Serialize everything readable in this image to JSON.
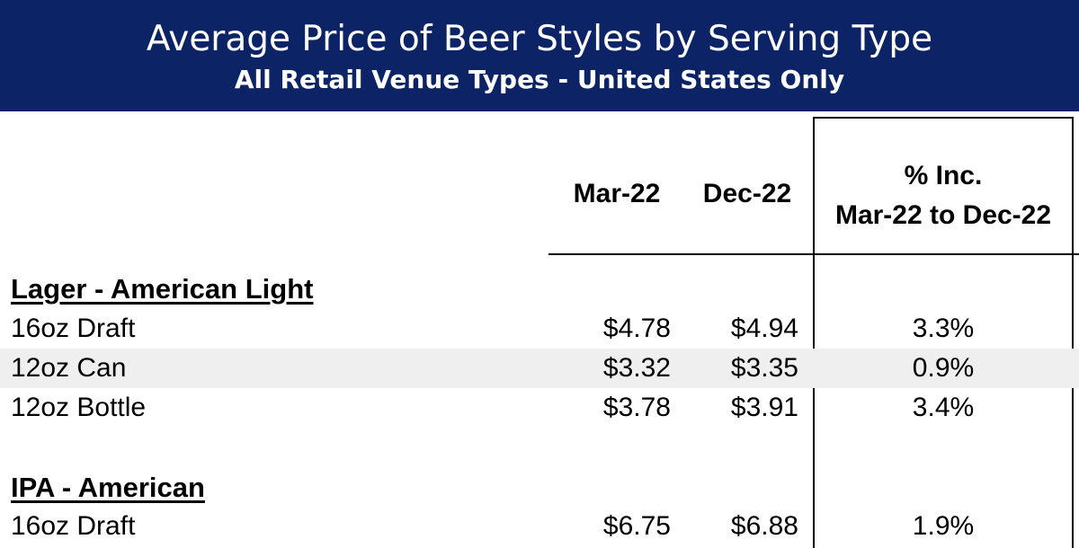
{
  "header": {
    "title": "Average Price of Beer Styles by Serving Type",
    "subtitle": "All Retail Venue Types - United States Only"
  },
  "columns": {
    "mar": "Mar-22",
    "dec": "Dec-22",
    "pct_line1": "% Inc.",
    "pct_line2": "Mar-22 to Dec-22"
  },
  "sections": [
    {
      "title": "Lager - American Light",
      "rows": [
        {
          "label": "16oz Draft",
          "mar": "$4.78",
          "dec": "$4.94",
          "pct": "3.3%"
        },
        {
          "label": "12oz Can",
          "mar": "$3.32",
          "dec": "$3.35",
          "pct": "0.9%"
        },
        {
          "label": "12oz Bottle",
          "mar": "$3.78",
          "dec": "$3.91",
          "pct": "3.4%"
        }
      ]
    },
    {
      "title": "IPA - American",
      "rows": [
        {
          "label": "16oz Draft",
          "mar": "$6.75",
          "dec": "$6.88",
          "pct": "1.9%"
        }
      ]
    }
  ],
  "colors": {
    "banner": "#0c2466",
    "row_shade": "#efefef"
  }
}
